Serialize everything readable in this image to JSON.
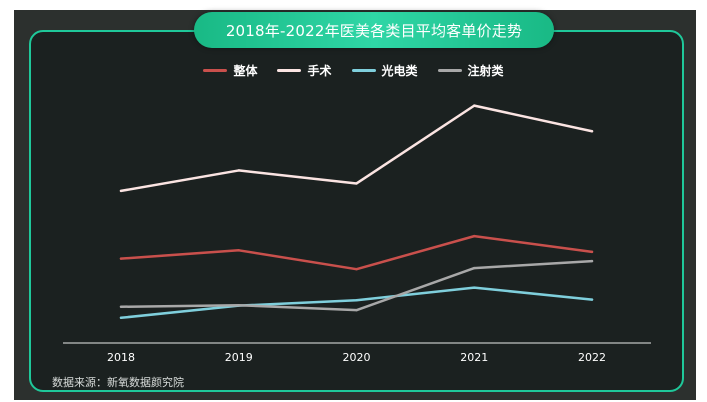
{
  "title": "2018年-2022年医美各类目平均客单价走势",
  "source": "数据来源：新氧数据颜究院",
  "chart_data": {
    "type": "line",
    "title": "2018年-2022年医美各类目平均客单价走势",
    "xlabel": "",
    "ylabel": "",
    "categories": [
      "2018",
      "2019",
      "2020",
      "2021",
      "2022"
    ],
    "ylim": [
      0,
      100
    ],
    "y_axis_shown": false,
    "grid": false,
    "legend_position": "top-center",
    "series": [
      {
        "name": "整体",
        "color": "#c9504c",
        "values": [
          37.5,
          41.2,
          32.8,
          47.5,
          40.5
        ]
      },
      {
        "name": "手术",
        "color": "#fbe4e2",
        "values": [
          67.6,
          76.7,
          70.9,
          105.5,
          94.1
        ]
      },
      {
        "name": "光电类",
        "color": "#7fcfdc",
        "values": [
          11.2,
          16.6,
          19.0,
          24.6,
          19.3
        ]
      },
      {
        "name": "注射类",
        "color": "#a8a8a8",
        "values": [
          16.1,
          16.8,
          14.6,
          33.3,
          36.4
        ]
      }
    ]
  }
}
